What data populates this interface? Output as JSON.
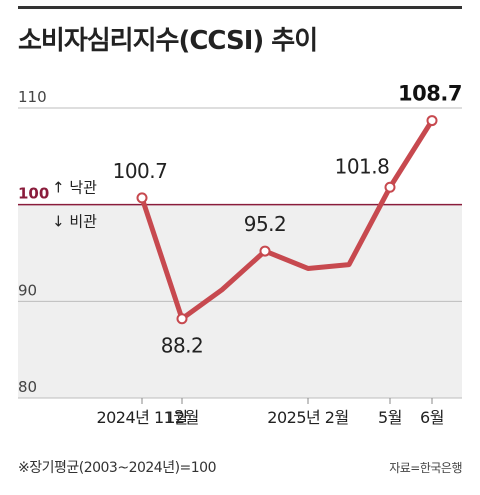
{
  "title": "소비자심리지수(CCSI) 추이",
  "footnote": "※장기평균(2003~2024년)=100",
  "source": "자료=한국은행",
  "reference": {
    "value": 100,
    "label": "100",
    "up_label": "↑ 낙관",
    "down_label": "↓ 비관"
  },
  "chart_data": {
    "type": "line",
    "title": "소비자심리지수(CCSI) 추이",
    "ylim": [
      80,
      110
    ],
    "y_ticks": [
      "110",
      "100",
      "90",
      "80"
    ],
    "y_tick_values": [
      110,
      100,
      90,
      80
    ],
    "x_tick_labels": [
      {
        "index": 0,
        "label": "2024년 11월"
      },
      {
        "index": 1,
        "label": "12월"
      },
      {
        "index": 4,
        "label": "2025년 2월"
      },
      {
        "index": 7,
        "label": "5월"
      },
      {
        "index": 8,
        "label": "6월"
      }
    ],
    "series": [
      {
        "values": [
          100.7,
          88.2,
          91.2,
          95.2,
          93.4,
          93.8,
          101.8,
          108.7
        ],
        "point_months_index": [
          0,
          1,
          2,
          3,
          4,
          5,
          7,
          8
        ]
      }
    ],
    "data_labels": [
      {
        "point": 0,
        "text": "100.7"
      },
      {
        "point": 1,
        "text": "88.2"
      },
      {
        "point": 3,
        "text": "95.2"
      },
      {
        "point": 6,
        "text": "101.8"
      },
      {
        "point": 7,
        "text": "108.7"
      }
    ],
    "grid": true,
    "colors": {
      "line": "#c7494f",
      "reference": "#8a1c3b",
      "below_fill": "#efefef",
      "grid": "#bdbdbd"
    }
  }
}
